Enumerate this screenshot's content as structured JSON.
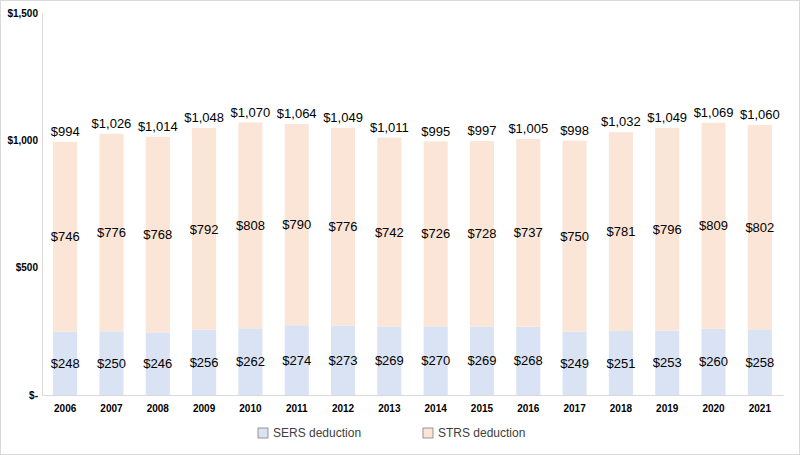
{
  "chart_data": {
    "type": "bar",
    "stacked": true,
    "data_labels": true,
    "legend": "bottom",
    "categories": [
      "2006",
      "2007",
      "2008",
      "2009",
      "2010",
      "2011",
      "2012",
      "2013",
      "2014",
      "2015",
      "2016",
      "2017",
      "2018",
      "2019",
      "2020",
      "2021"
    ],
    "series": [
      {
        "name": "SERS deduction",
        "color": "#dae3f3",
        "values": [
          248,
          250,
          246,
          256,
          262,
          274,
          273,
          269,
          270,
          269,
          268,
          249,
          251,
          253,
          260,
          258
        ],
        "value_labels": [
          "$248",
          "$250",
          "$246",
          "$256",
          "$262",
          "$274",
          "$273",
          "$269",
          "$270",
          "$269",
          "$268",
          "$249",
          "$251",
          "$253",
          "$260",
          "$258"
        ]
      },
      {
        "name": "STRS deduction",
        "color": "#fbe5d6",
        "values": [
          746,
          776,
          768,
          792,
          808,
          790,
          776,
          742,
          726,
          728,
          737,
          750,
          781,
          796,
          809,
          802
        ],
        "value_labels": [
          "$746",
          "$776",
          "$768",
          "$792",
          "$808",
          "$790",
          "$776",
          "$742",
          "$726",
          "$728",
          "$737",
          "$750",
          "$781",
          "$796",
          "$809",
          "$802"
        ]
      }
    ],
    "totals": {
      "values": [
        994,
        1026,
        1014,
        1048,
        1070,
        1064,
        1049,
        1011,
        995,
        997,
        1005,
        998,
        1032,
        1049,
        1069,
        1060
      ],
      "value_labels": [
        "$994",
        "$1,026",
        "$1,014",
        "$1,048",
        "$1,070",
        "$1,064",
        "$1,049",
        "$1,011",
        "$995",
        "$997",
        "$1,005",
        "$998",
        "$1,032",
        "$1,049",
        "$1,069",
        "$1,060"
      ]
    },
    "ylim": [
      0,
      1500
    ],
    "yticks": [
      {
        "value": 0,
        "label": "$-"
      },
      {
        "value": 500,
        "label": "$500"
      },
      {
        "value": 1000,
        "label": "$1,000"
      },
      {
        "value": 1500,
        "label": "$1,500"
      }
    ]
  }
}
